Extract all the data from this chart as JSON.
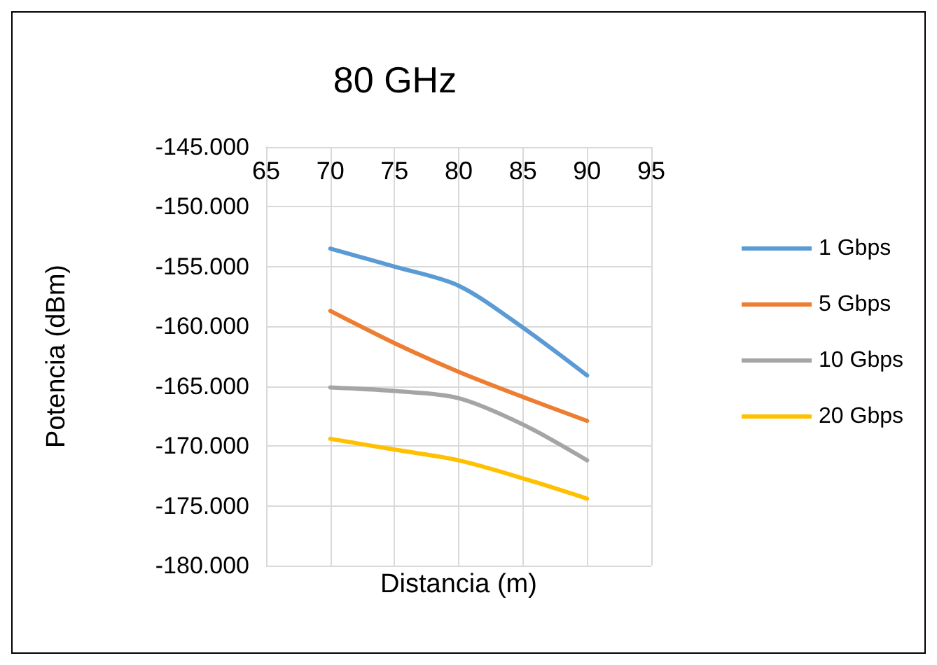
{
  "chart_data": {
    "type": "line",
    "title": "80 GHz",
    "xlabel": "Distancia (m)",
    "ylabel": "Potencia (dBm)",
    "xlim": [
      65,
      95
    ],
    "xticks": [
      65,
      70,
      75,
      80,
      85,
      90,
      95
    ],
    "ylim": [
      -180,
      -145
    ],
    "yticks": [
      {
        "value": -180,
        "label": "-180.000"
      },
      {
        "value": -175,
        "label": "-175.000"
      },
      {
        "value": -170,
        "label": "-170.000"
      },
      {
        "value": -165,
        "label": "-165.000"
      },
      {
        "value": -160,
        "label": "-160.000"
      },
      {
        "value": -155,
        "label": "-155.000"
      },
      {
        "value": -150,
        "label": "-150.000"
      },
      {
        "value": -145,
        "label": "-145.000"
      }
    ],
    "x": [
      70,
      75,
      80,
      85,
      90
    ],
    "grid": true,
    "legend": "right",
    "marker": "none",
    "line_style": "solid",
    "series": [
      {
        "name": "1 Gbps",
        "color": "#5b9bd5",
        "values": [
          -153.5,
          -155.0,
          -156.6,
          -160.1,
          -164.1
        ]
      },
      {
        "name": "5 Gbps",
        "color": "#ed7d31",
        "values": [
          -158.7,
          -161.4,
          -163.8,
          -165.9,
          -167.9
        ]
      },
      {
        "name": "10 Gbps",
        "color": "#a5a5a5",
        "values": [
          -165.1,
          -165.4,
          -166.0,
          -168.2,
          -171.2
        ]
      },
      {
        "name": "20 Gbps",
        "color": "#ffc000",
        "values": [
          -169.4,
          -170.3,
          -171.2,
          -172.7,
          -174.4
        ]
      }
    ]
  }
}
